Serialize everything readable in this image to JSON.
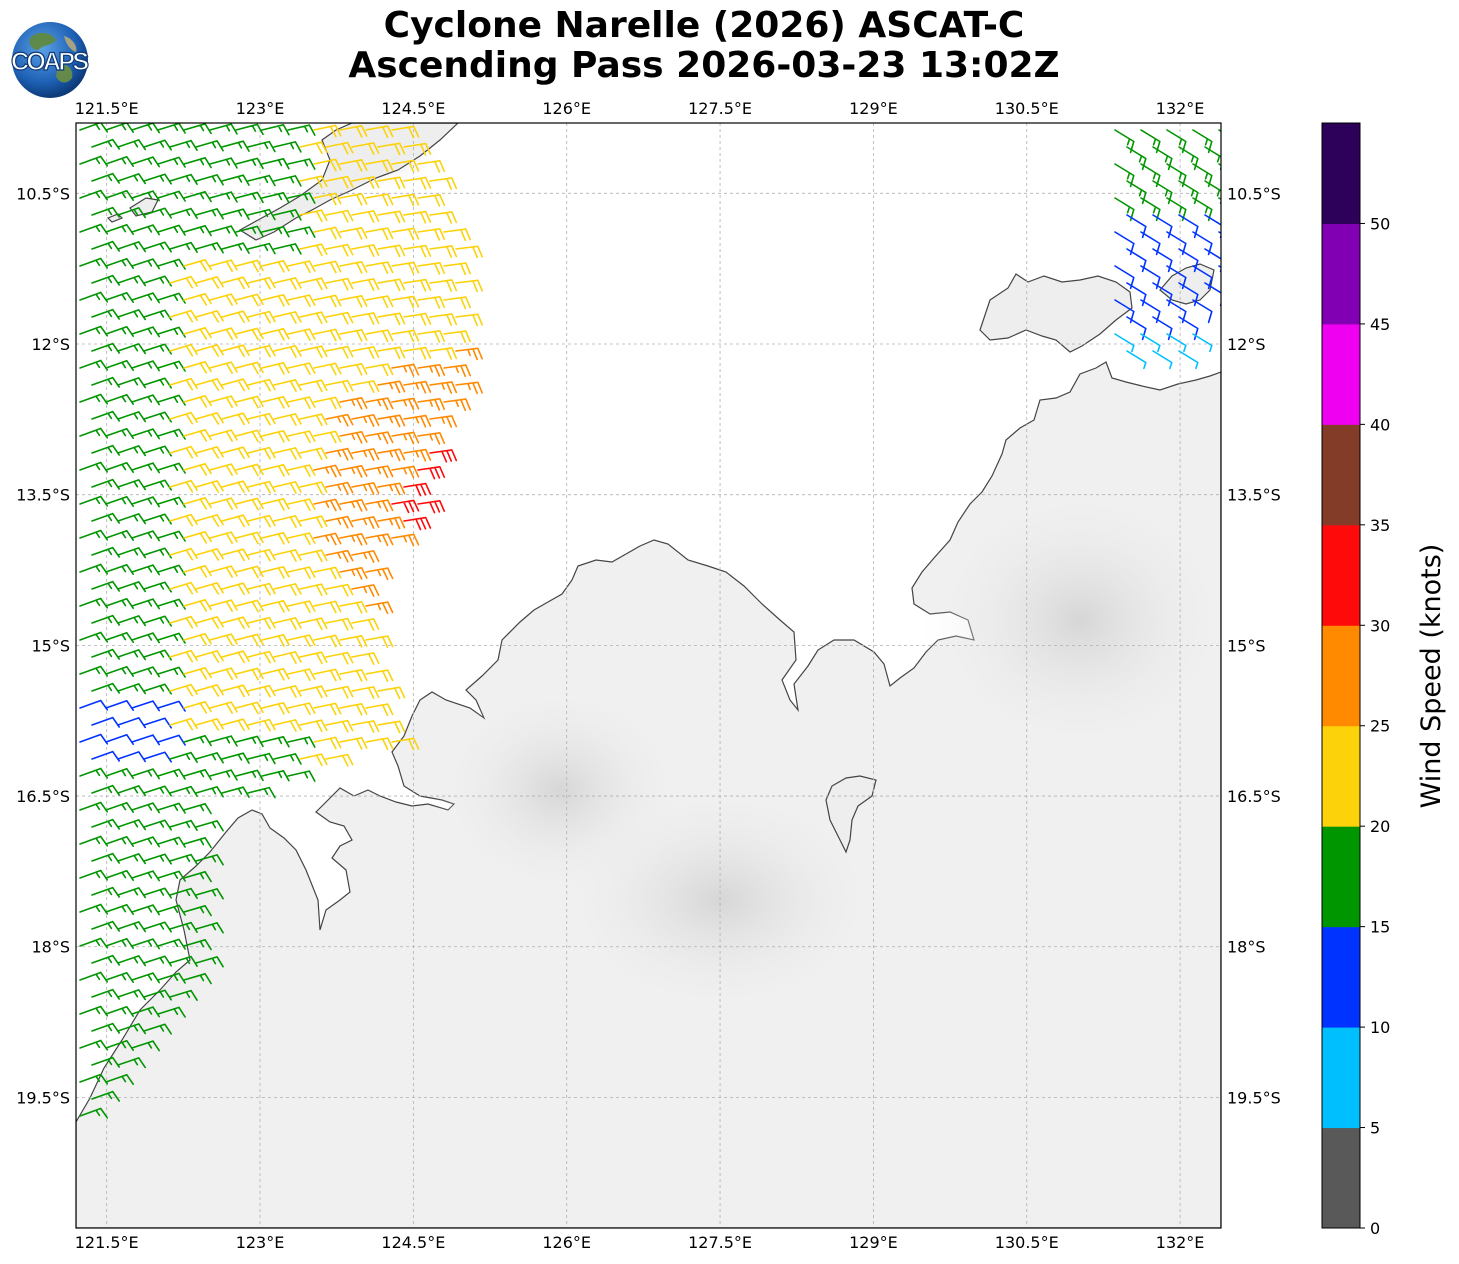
{
  "title": {
    "line1": "Cyclone Narelle (2026) ASCAT-C",
    "line2": "Ascending Pass 2026-03-23 13:02Z"
  },
  "logo": {
    "text": "COAPS",
    "icon": "globe-icon"
  },
  "map": {
    "lon_range": [
      121.2,
      132.4
    ],
    "lat_range": [
      -20.8,
      -9.8
    ],
    "lon_ticks": [
      "121.5°E",
      "123°E",
      "124.5°E",
      "126°E",
      "127.5°E",
      "129°E",
      "130.5°E",
      "132°E"
    ],
    "lat_ticks": [
      "10.5°S",
      "12°S",
      "13.5°S",
      "15°S",
      "16.5°S",
      "18°S",
      "19.5°S"
    ],
    "gridlines": true,
    "features": [
      "Australian coastline (Kimberley / Top End)",
      "land topography shading",
      "wind barbs"
    ]
  },
  "colorbar": {
    "label": "Wind Speed (knots)",
    "ticks": [
      "0",
      "5",
      "10",
      "15",
      "20",
      "25",
      "30",
      "35",
      "40",
      "45",
      "50"
    ],
    "colors": [
      "#595959",
      "#00bfff",
      "#0033ff",
      "#009600",
      "#fcd20a",
      "#ff8a00",
      "#ff0a0a",
      "#823c28",
      "#f000f0",
      "#8200b4",
      "#2d005a"
    ]
  }
}
